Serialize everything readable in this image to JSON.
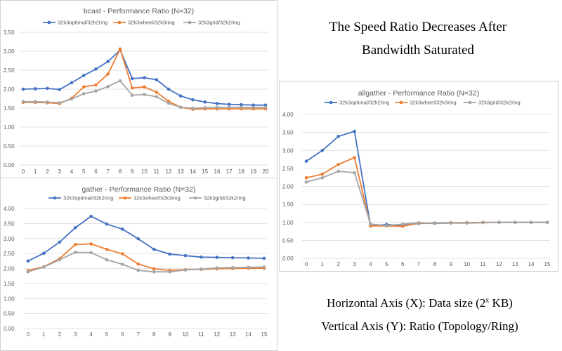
{
  "headline": {
    "line1": "The Speed Ratio Decreases After",
    "line2": "Bandwidth Saturated"
  },
  "axis_notes": {
    "horizontal_prefix": "Horizontal Axis (X): Data size (2",
    "horizontal_sup": "x",
    "horizontal_suffix": " KB)",
    "vertical": "Vertical Axis (Y): Ratio (Topology/Ring)"
  },
  "colors": {
    "blue": "#4472C4",
    "orange": "#ED7D31",
    "gray": "#A5A5A5",
    "grid": "#D9D9D9"
  },
  "chart_data": [
    {
      "id": "bcast",
      "type": "line",
      "title": "bcast - Performance Ratio (N=32)",
      "x": [
        0,
        1,
        2,
        3,
        4,
        5,
        6,
        7,
        8,
        9,
        10,
        11,
        12,
        13,
        14,
        15,
        16,
        17,
        18,
        19,
        20
      ],
      "ylim": [
        0,
        3.5
      ],
      "yticks": [
        "0.00",
        "0.50",
        "1.00",
        "1.50",
        "2.00",
        "2.50",
        "3.00",
        "3.50"
      ],
      "legend_position": "top",
      "grid": true,
      "series": [
        {
          "name": "32k3optimal/32k2ring",
          "color": "#4472C4",
          "values": [
            2.0,
            2.01,
            2.02,
            1.99,
            2.17,
            2.36,
            2.53,
            2.73,
            3.03,
            2.28,
            2.3,
            2.25,
            2.0,
            1.82,
            1.72,
            1.66,
            1.62,
            1.6,
            1.59,
            1.58,
            1.58
          ]
        },
        {
          "name": "32k3wheel/32k3ring",
          "color": "#ED7D31",
          "values": [
            1.65,
            1.65,
            1.64,
            1.62,
            1.76,
            2.06,
            2.11,
            2.4,
            3.06,
            2.03,
            2.06,
            1.92,
            1.68,
            1.52,
            1.47,
            1.48,
            1.48,
            1.48,
            1.48,
            1.48,
            1.48
          ]
        },
        {
          "name": "32k3grid/32k2ring",
          "color": "#A5A5A5",
          "values": [
            1.67,
            1.67,
            1.66,
            1.64,
            1.74,
            1.88,
            1.95,
            2.07,
            2.22,
            1.84,
            1.86,
            1.8,
            1.63,
            1.52,
            1.5,
            1.51,
            1.52,
            1.52,
            1.52,
            1.52,
            1.52
          ]
        }
      ]
    },
    {
      "id": "gather",
      "type": "line",
      "title": "gather - Performance Ratio (N=32)",
      "x": [
        0,
        1,
        2,
        3,
        4,
        5,
        6,
        7,
        8,
        9,
        10,
        11,
        12,
        13,
        14,
        15
      ],
      "ylim": [
        0,
        4.0
      ],
      "yticks": [
        "0.00",
        "0.50",
        "1.00",
        "1.50",
        "2.00",
        "2.50",
        "3.00",
        "3.50",
        "4.00"
      ],
      "legend_position": "top",
      "grid": true,
      "series": [
        {
          "name": "32k3optimal/32k2ring",
          "color": "#4472C4",
          "values": [
            2.25,
            2.51,
            2.88,
            3.36,
            3.74,
            3.48,
            3.31,
            2.99,
            2.64,
            2.48,
            2.43,
            2.38,
            2.37,
            2.36,
            2.35,
            2.34
          ]
        },
        {
          "name": "32k3wheel/32k3ring",
          "color": "#ED7D31",
          "values": [
            1.93,
            2.06,
            2.33,
            2.8,
            2.82,
            2.64,
            2.49,
            2.15,
            1.99,
            1.94,
            1.96,
            1.97,
            1.99,
            2.0,
            2.01,
            2.01
          ]
        },
        {
          "name": "32k3grid/32k2ring",
          "color": "#A5A5A5",
          "values": [
            1.89,
            2.05,
            2.29,
            2.54,
            2.53,
            2.29,
            2.14,
            1.94,
            1.89,
            1.89,
            1.95,
            1.98,
            2.02,
            2.03,
            2.04,
            2.05
          ]
        }
      ]
    },
    {
      "id": "allgather",
      "type": "line",
      "title": "allgather - Performance Ratio (N=32)",
      "x": [
        0,
        1,
        2,
        3,
        4,
        5,
        6,
        7,
        8,
        9,
        10,
        11,
        12,
        13,
        14,
        15
      ],
      "ylim": [
        0,
        4.0
      ],
      "yticks": [
        "0.00",
        "0.50",
        "1.00",
        "1.50",
        "2.00",
        "2.50",
        "3.00",
        "3.50",
        "4.00"
      ],
      "legend_position": "top",
      "grid": true,
      "series": [
        {
          "name": "32k3optimal/32k2ring",
          "color": "#4472C4",
          "values": [
            2.7,
            3.0,
            3.39,
            3.53,
            0.9,
            0.94,
            0.91,
            0.97,
            0.98,
            0.99,
            0.99,
            1.0,
            1.0,
            1.0,
            1.0,
            1.0
          ]
        },
        {
          "name": "32k3wheel/32k3ring",
          "color": "#ED7D31",
          "values": [
            2.24,
            2.34,
            2.61,
            2.8,
            0.9,
            0.9,
            0.89,
            0.98,
            0.97,
            0.99,
            0.99,
            1.0,
            1.0,
            1.0,
            1.0,
            1.0
          ]
        },
        {
          "name": "32k3grid/32k2ring",
          "color": "#A5A5A5",
          "values": [
            2.12,
            2.24,
            2.42,
            2.38,
            0.95,
            0.91,
            0.95,
            0.99,
            0.97,
            0.98,
            0.98,
            0.99,
            1.0,
            1.0,
            1.0,
            1.0
          ]
        }
      ]
    }
  ]
}
